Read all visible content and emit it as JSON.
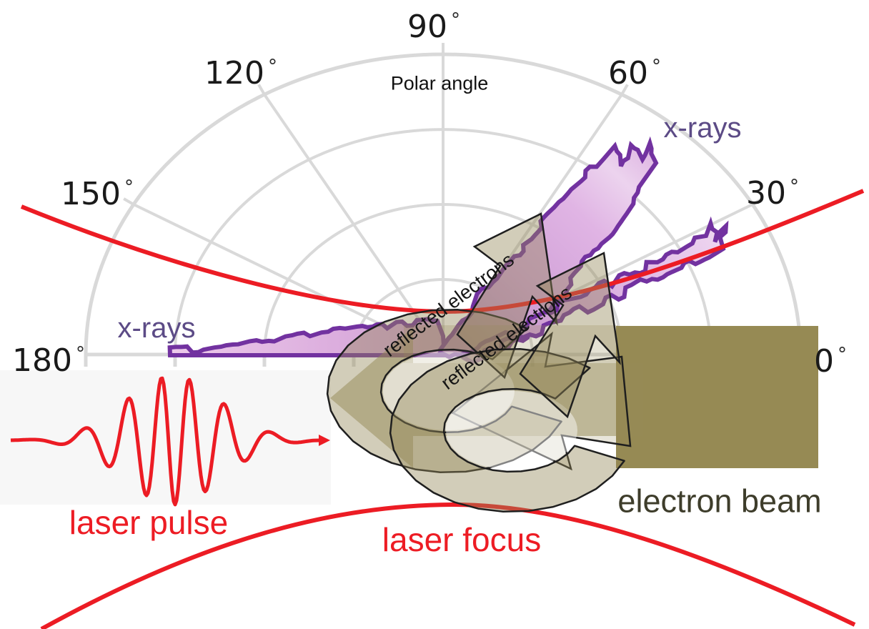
{
  "diagram": {
    "polar": {
      "axis_title": "Polar angle",
      "angle_unit": "°",
      "angles": [
        "90",
        "120",
        "60",
        "150",
        "30",
        "180",
        "0"
      ],
      "tick_angles_deg": [
        0,
        30,
        60,
        90,
        120,
        150,
        180
      ]
    },
    "labels": {
      "xrays_right": "x-rays",
      "xrays_left": "x-rays",
      "laser_pulse": "laser pulse",
      "laser_focus": "laser focus",
      "electron_beam": "electron beam",
      "reflected_electrons_front": "reflected electrons",
      "reflected_electrons_back": "reflected electrons"
    },
    "colors": {
      "red": "#ec1c24",
      "xray_outline": "#7232a0",
      "xray_fill_light": "#ecd3ee",
      "xray_fill_mid": "#d5a6da",
      "xray_label": "#5c4b86",
      "olive": "#968a54",
      "olive_translucent": "rgba(150,138,85,0.50)",
      "arrow_ribbon": "rgba(148,136,88,0.42)",
      "arrow_outline": "#1f1f1f",
      "electron_beam_text": "#3e3d2b",
      "grid": "#d9d9d9",
      "text": "#1a1a1a"
    }
  }
}
